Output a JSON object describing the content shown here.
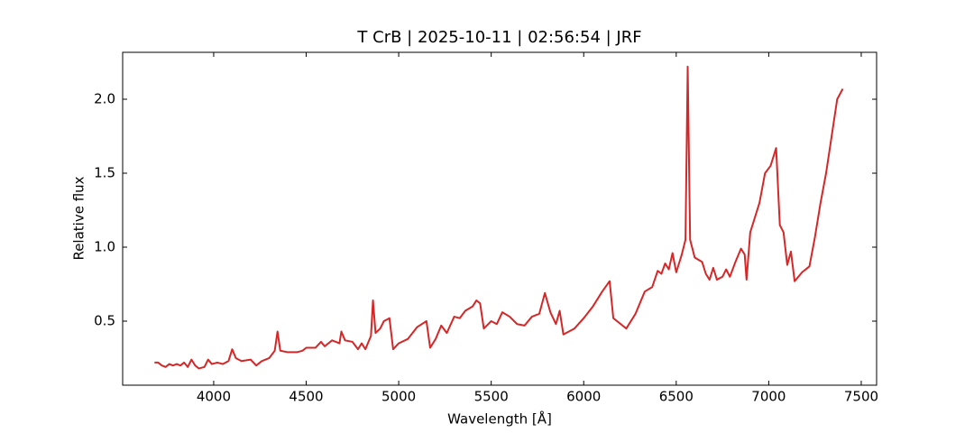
{
  "chart_data": {
    "type": "line",
    "title": "T CrB | 2025-10-11 | 02:56:54 | JRF",
    "xlabel": "Wavelength [Å]",
    "ylabel": "Relative flux",
    "xlim": [
      3508,
      7583
    ],
    "ylim": [
      0.067,
      2.317
    ],
    "xticks": [
      4000,
      4500,
      5000,
      5500,
      6000,
      6500,
      7000,
      7500
    ],
    "yticks": [
      0.5,
      {
        "value": 1.0,
        "label": "1.0"
      },
      1.5,
      {
        "value": 2.0,
        "label": "2.0"
      }
    ],
    "grid": false,
    "x": [
      3680,
      3700,
      3720,
      3740,
      3760,
      3780,
      3800,
      3820,
      3840,
      3860,
      3880,
      3900,
      3920,
      3950,
      3970,
      3990,
      4020,
      4050,
      4080,
      4100,
      4120,
      4150,
      4200,
      4230,
      4260,
      4300,
      4330,
      4345,
      4360,
      4400,
      4450,
      4480,
      4500,
      4550,
      4580,
      4600,
      4640,
      4680,
      4690,
      4710,
      4750,
      4780,
      4800,
      4820,
      4850,
      4861,
      4875,
      4900,
      4920,
      4950,
      4970,
      5000,
      5050,
      5100,
      5150,
      5170,
      5200,
      5230,
      5260,
      5300,
      5330,
      5360,
      5400,
      5420,
      5440,
      5460,
      5500,
      5530,
      5560,
      5600,
      5640,
      5680,
      5720,
      5760,
      5790,
      5820,
      5850,
      5870,
      5890,
      5950,
      6000,
      6050,
      6100,
      6140,
      6160,
      6200,
      6230,
      6280,
      6330,
      6370,
      6400,
      6420,
      6440,
      6460,
      6480,
      6500,
      6530,
      6550,
      6562,
      6575,
      6600,
      6640,
      6660,
      6680,
      6700,
      6720,
      6750,
      6770,
      6790,
      6820,
      6850,
      6870,
      6880,
      6900,
      6950,
      6980,
      7010,
      7040,
      7060,
      7080,
      7100,
      7120,
      7140,
      7180,
      7220,
      7250,
      7280,
      7310,
      7340,
      7370,
      7400
    ],
    "series": [
      {
        "name": "T CrB",
        "color": "#d62728",
        "values": [
          0.22,
          0.22,
          0.2,
          0.19,
          0.21,
          0.2,
          0.21,
          0.2,
          0.22,
          0.19,
          0.24,
          0.2,
          0.18,
          0.19,
          0.24,
          0.21,
          0.22,
          0.21,
          0.23,
          0.31,
          0.25,
          0.23,
          0.24,
          0.2,
          0.23,
          0.25,
          0.3,
          0.43,
          0.3,
          0.29,
          0.29,
          0.3,
          0.32,
          0.32,
          0.36,
          0.33,
          0.37,
          0.35,
          0.43,
          0.37,
          0.36,
          0.31,
          0.35,
          0.31,
          0.4,
          0.64,
          0.42,
          0.45,
          0.5,
          0.52,
          0.31,
          0.35,
          0.38,
          0.46,
          0.5,
          0.32,
          0.38,
          0.47,
          0.42,
          0.53,
          0.52,
          0.57,
          0.6,
          0.64,
          0.62,
          0.45,
          0.5,
          0.48,
          0.56,
          0.53,
          0.48,
          0.47,
          0.53,
          0.55,
          0.69,
          0.56,
          0.48,
          0.57,
          0.41,
          0.45,
          0.52,
          0.6,
          0.7,
          0.77,
          0.52,
          0.48,
          0.45,
          0.55,
          0.7,
          0.73,
          0.84,
          0.82,
          0.89,
          0.85,
          0.96,
          0.83,
          0.95,
          1.05,
          2.22,
          1.05,
          0.93,
          0.9,
          0.82,
          0.78,
          0.86,
          0.78,
          0.8,
          0.85,
          0.8,
          0.9,
          0.99,
          0.95,
          0.78,
          1.1,
          1.3,
          1.5,
          1.55,
          1.67,
          1.15,
          1.1,
          0.88,
          0.97,
          0.77,
          0.83,
          0.87,
          1.07,
          1.3,
          1.5,
          1.75,
          2.0,
          2.07
        ]
      }
    ]
  }
}
